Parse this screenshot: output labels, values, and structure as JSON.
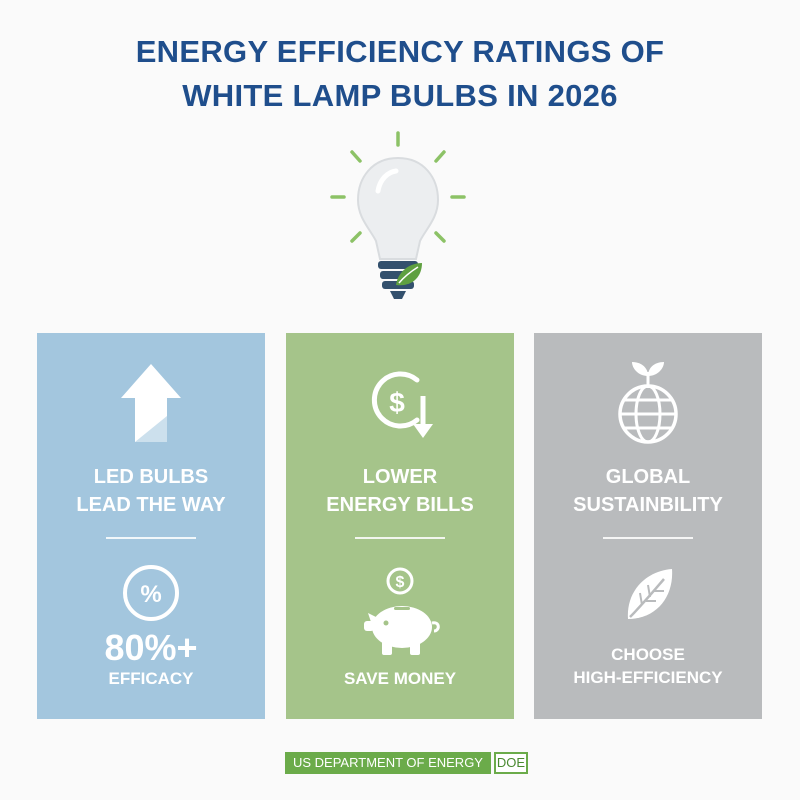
{
  "header": {
    "title_line1": "ENERGY EFFICIENCY RATINGS OF",
    "title_line2": "WHITE LAMP BULBS IN 2026"
  },
  "hero_icon": "lightbulb-with-leaf-icon",
  "panels": [
    {
      "id": "led",
      "top_icon": "arrow-up-icon",
      "headline_line1": "LED BULBS",
      "headline_line2": "LEAD THE WAY",
      "mid_icon": "percent-circle-icon",
      "big_value": "80%+",
      "caption_line1": "EFFICACY",
      "caption_line2": "",
      "color": "#a3c6de"
    },
    {
      "id": "bills",
      "top_icon": "dollar-down-arrow-icon",
      "headline_line1": "LOWER",
      "headline_line2": "ENERGY BILLS",
      "mid_icon": "piggy-bank-icon",
      "big_value": "",
      "caption_line1": "SAVE MONEY",
      "caption_line2": "",
      "color": "#a5c48a"
    },
    {
      "id": "global",
      "top_icon": "globe-sprout-icon",
      "headline_line1": "GLOBAL",
      "headline_line2": "SUSTAINBILITY",
      "mid_icon": "leaf-icon",
      "big_value": "",
      "caption_line1": "CHOOSE",
      "caption_line2": "HIGH-EFFICIENCY",
      "color": "#b9bbbd"
    }
  ],
  "footer": {
    "agency": "US DEPARTMENT OF ENERGY",
    "logo_text": "DOE",
    "color": "#6bab4a"
  }
}
